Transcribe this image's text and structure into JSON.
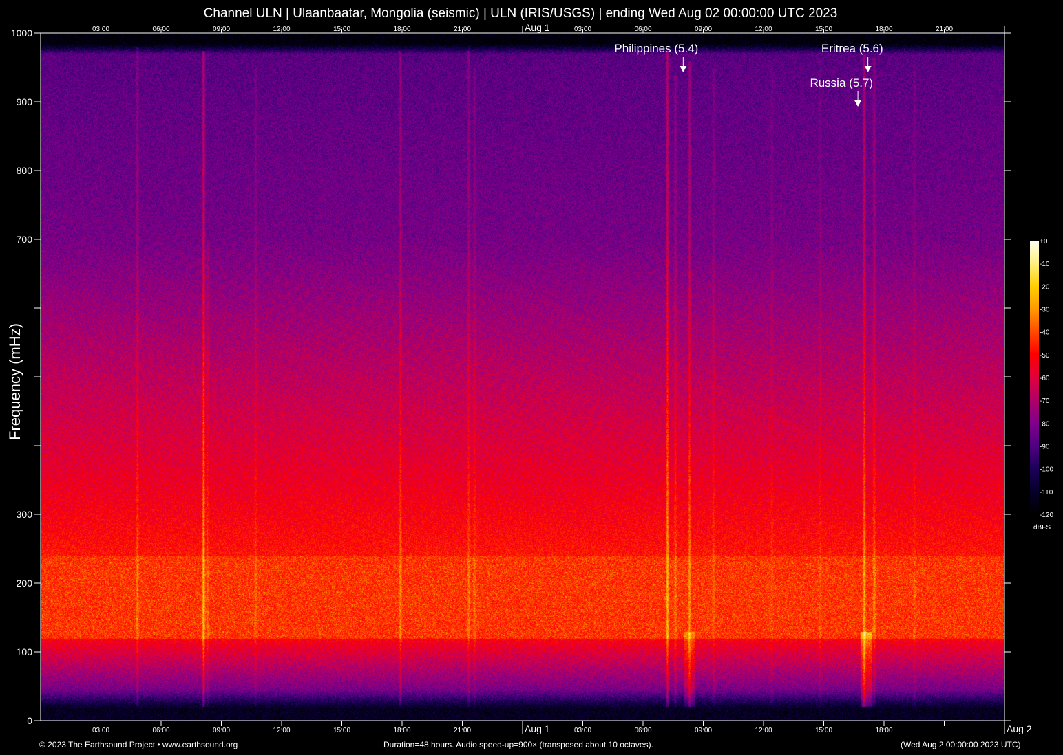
{
  "chart_data": {
    "type": "heatmap",
    "title": "Channel ULN | Ulaanbaatar, Mongolia (seismic) | ULN (IRIS/USGS) | ending Wed Aug 02 00:00:00 UTC 2023",
    "ylabel": "Frequency (mHz)",
    "ylim": [
      0,
      1000
    ],
    "yticks": [
      0,
      100,
      200,
      300,
      400,
      500,
      600,
      700,
      800,
      900,
      1000
    ],
    "ytick_labels": [
      "0",
      "100",
      "200",
      "300",
      "",
      "",
      "",
      "700",
      "800",
      "900",
      "1000"
    ],
    "x_range_hours": [
      0,
      48
    ],
    "xtick_hours": [
      3,
      6,
      9,
      12,
      15,
      18,
      21,
      24,
      27,
      30,
      33,
      36,
      39,
      42,
      45,
      48
    ],
    "xtick_labels": [
      "03:00",
      "06:00",
      "09:00",
      "12:00",
      "15:00",
      "18:00",
      "21:00",
      "Aug  1",
      "03:00",
      "06:00",
      "09:00",
      "12:00",
      "15:00",
      "18:00",
      "",
      "Aug  2"
    ],
    "top_xtick_labels": [
      "03:00",
      "06:00",
      "09:00",
      "12:00",
      "15:00",
      "18:00",
      "21:00",
      "Aug  1",
      "03:00",
      "06:00",
      "09:00",
      "12:00",
      "15:00",
      "18:00",
      "21:00",
      ""
    ],
    "colorbar": {
      "label": "dBFS",
      "range": [
        -120,
        0
      ],
      "tick_labels": [
        "+0",
        "-10",
        "-20",
        "-30",
        "-40",
        "-50",
        "-60",
        "-70",
        "-80",
        "-90",
        "-100",
        "-110",
        "-120"
      ],
      "colors": [
        "#fffff0",
        "#fff080",
        "#ffd000",
        "#ff9a00",
        "#ff4a00",
        "#ff0000",
        "#e0003c",
        "#b00068",
        "#80008a",
        "#500082",
        "#1c0058",
        "#06002a",
        "#000000"
      ]
    },
    "annotations": [
      {
        "label": "Philippines (5.4)",
        "hour": 32.0,
        "freq_mHz": 945
      },
      {
        "label": "Eritrea (5.6)",
        "hour": 41.2,
        "freq_mHz": 945
      },
      {
        "label": "Russia (5.7)",
        "hour": 40.7,
        "freq_mHz": 895
      }
    ]
  },
  "footer": {
    "copyright": "© 2023 The Earthsound Project • www.earthsound.org",
    "info": "Duration=48 hours. Audio speed-up=900× (transposed about 10 octaves).",
    "end_time": "(Wed Aug  2 00:00:00 2023 UTC)"
  }
}
